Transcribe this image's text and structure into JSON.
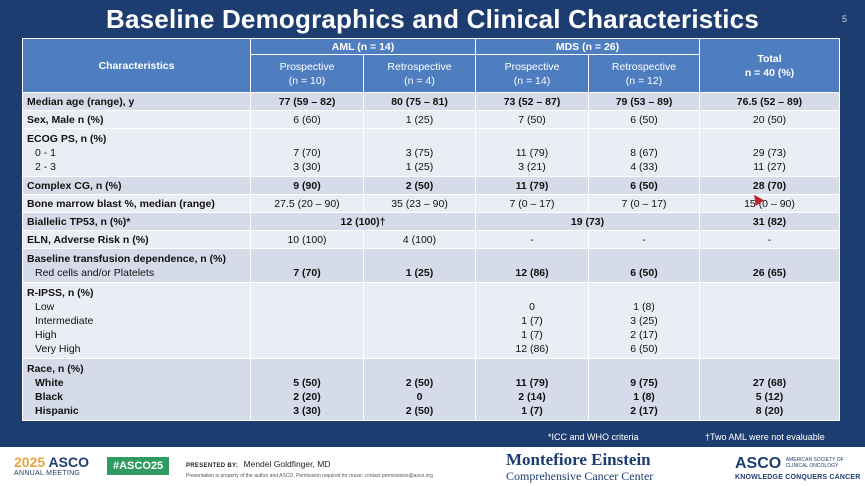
{
  "slide": {
    "title": "Baseline Demographics and Clinical Characteristics",
    "number": "5"
  },
  "table": {
    "header": {
      "characteristics": "Characteristics",
      "aml": "AML (n = 14)",
      "mds": "MDS (n = 26)",
      "total": "Total",
      "total_n": "n = 40 (%)",
      "aml_prosp": "Prospective",
      "aml_prosp_n": "(n = 10)",
      "aml_retro": "Retrospective",
      "aml_retro_n": "(n = 4)",
      "mds_prosp": "Prospective",
      "mds_prosp_n": "(n = 14)",
      "mds_retro": "Retrospective",
      "mds_retro_n": "(n = 12)"
    },
    "median_age": {
      "label": "Median age (range), y",
      "v": [
        "77 (59 – 82)",
        "80 (75 – 81)",
        "73 (52 – 87)",
        "79 (53 – 89)",
        "76.5 (52 – 89)"
      ]
    },
    "sex_male": {
      "label": "Sex, Male n (%)",
      "v": [
        "6 (60)",
        "1 (25)",
        "7 (50)",
        "6 (50)",
        "20 (50)"
      ]
    },
    "ecog": {
      "label": "ECOG PS, n (%)",
      "r1_label": "0 - 1",
      "r1": [
        "7 (70)",
        "3 (75)",
        "11 (79)",
        "8 (67)",
        "29 (73)"
      ],
      "r2_label": "2 - 3",
      "r2": [
        "3 (30)",
        "1 (25)",
        "3 (21)",
        "4 (33)",
        "11 (27)"
      ]
    },
    "complex_cg": {
      "label": "Complex CG, n (%)",
      "v": [
        "9 (90)",
        "2 (50)",
        "11 (79)",
        "6 (50)",
        "28 (70)"
      ]
    },
    "marrow_blast": {
      "label": "Bone marrow blast %, median (range)",
      "v": [
        "27.5 (20 – 90)",
        "35 (23 – 90)",
        "7 (0 – 17)",
        "7 (0 – 17)",
        "15 (0 – 90)"
      ]
    },
    "biallelic": {
      "label": "Biallelic TP53, n (%)*",
      "aml": "12 (100)†",
      "mds": "19 (73)",
      "total": "31 (82)"
    },
    "eln": {
      "label": "ELN, Adverse Risk n (%)",
      "v": [
        "10 (100)",
        "4 (100)",
        "-",
        "-",
        "-"
      ]
    },
    "transfusion": {
      "label": "Baseline transfusion dependence, n (%)",
      "sub_label": "Red cells and/or Platelets",
      "v": [
        "7 (70)",
        "1 (25)",
        "12 (86)",
        "6 (50)",
        "26 (65)"
      ]
    },
    "ripss": {
      "label": "R-IPSS, n (%)",
      "rows": [
        {
          "label": "Low",
          "mds_prosp": "0",
          "mds_retro": "1 (8)"
        },
        {
          "label": "Intermediate",
          "mds_prosp": "1 (7)",
          "mds_retro": "3 (25)"
        },
        {
          "label": "High",
          "mds_prosp": "1 (7)",
          "mds_retro": "2 (17)"
        },
        {
          "label": "Very High",
          "mds_prosp": "12 (86)",
          "mds_retro": "6 (50)"
        }
      ]
    },
    "race": {
      "label": "Race, n (%)",
      "rows": [
        {
          "label": "White",
          "v": [
            "5 (50)",
            "2 (50)",
            "11 (79)",
            "9 (75)",
            "27 (68)"
          ]
        },
        {
          "label": "Black",
          "v": [
            "2 (20)",
            "0",
            "2 (14)",
            "1 (8)",
            "5 (12)"
          ]
        },
        {
          "label": "Hispanic",
          "v": [
            "3 (30)",
            "2 (50)",
            "1 (7)",
            "2 (17)",
            "8 (20)"
          ]
        }
      ]
    }
  },
  "footnotes": {
    "icc": "*ICC and WHO criteria",
    "aml": "†Two AML were not evaluable"
  },
  "footer": {
    "asco_year": "2025",
    "asco_name": "ASCO",
    "asco_sub": "ANNUAL MEETING",
    "hashtag": "#ASCO25",
    "presented_by": "PRESENTED BY:",
    "presenter": "Mendel Goldfinger, MD",
    "disclaimer": "Presentation is property of the author and ASCO. Permission required for reuse; contact permissions@asco.org",
    "montefiore_1": "Montefiore Einstein",
    "montefiore_2": "Comprehensive Cancer Center",
    "asco_right": "ASCO",
    "asco_right_sub": "AMERICAN SOCIETY OF CLINICAL ONCOLOGY",
    "asco_tagline": "KNOWLEDGE CONQUERS CANCER"
  },
  "colors": {
    "slide_bg": "#1d3d70",
    "header_bg": "#4f7ec0",
    "row_dark": "#d5dbe8",
    "row_light": "#eaedf4",
    "hashtag_bg": "#2f9a61"
  }
}
